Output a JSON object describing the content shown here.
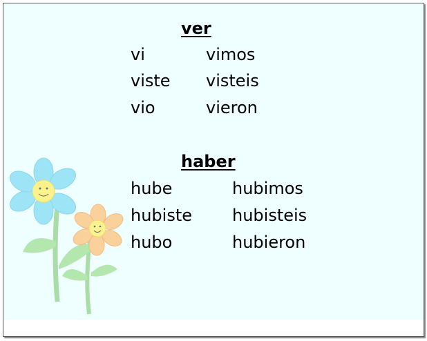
{
  "sections": [
    {
      "title": "ver",
      "rows": [
        [
          "vi",
          "vimos"
        ],
        [
          "viste",
          "visteis"
        ],
        [
          "vio",
          "vieron"
        ]
      ]
    },
    {
      "title": "haber",
      "rows": [
        [
          "hube",
          "hubimos"
        ],
        [
          "hubiste",
          "hubisteis"
        ],
        [
          "hubo",
          "hubieron"
        ]
      ]
    }
  ]
}
